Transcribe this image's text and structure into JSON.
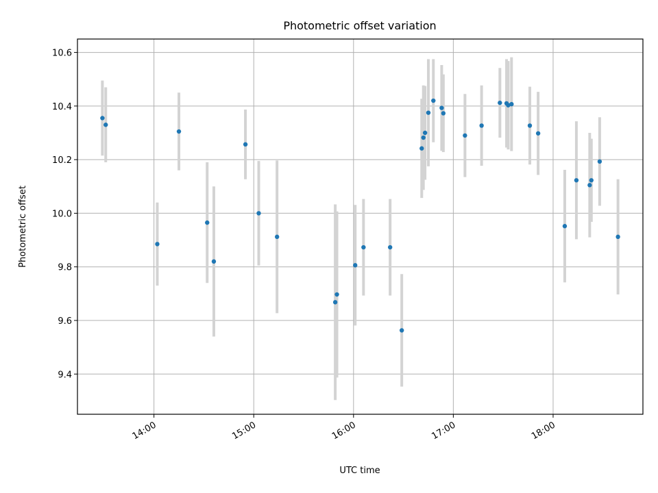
{
  "chart_data": {
    "type": "scatter",
    "title": "Photometric offset variation",
    "xlabel": "UTC time",
    "ylabel": "Photometric offset",
    "x_ticks": [
      "14:00",
      "15:00",
      "16:00",
      "17:00",
      "18:00"
    ],
    "y_ticks": [
      "9.4",
      "9.6",
      "9.8",
      "10.0",
      "10.2",
      "10.4",
      "10.6"
    ],
    "xlim": [
      "13:14",
      "18:54"
    ],
    "ylim": [
      9.25,
      10.65
    ],
    "grid": true,
    "colors": {
      "marker": "#1f77b4",
      "errorbar": "#d3d3d3",
      "grid": "#b0b0b0"
    },
    "points": [
      {
        "t": "13:29",
        "y": 10.355,
        "err": 0.14
      },
      {
        "t": "13:31",
        "y": 10.33,
        "err": 0.14
      },
      {
        "t": "14:02",
        "y": 9.885,
        "err": 0.155
      },
      {
        "t": "14:15",
        "y": 10.305,
        "err": 0.145
      },
      {
        "t": "14:32",
        "y": 9.965,
        "err": 0.225
      },
      {
        "t": "14:36",
        "y": 9.82,
        "err": 0.28
      },
      {
        "t": "14:55",
        "y": 10.257,
        "err": 0.13
      },
      {
        "t": "15:03",
        "y": 10.0,
        "err": 0.195
      },
      {
        "t": "15:14",
        "y": 9.912,
        "err": 0.285
      },
      {
        "t": "15:49",
        "y": 9.668,
        "err": 0.365
      },
      {
        "t": "15:50",
        "y": 9.697,
        "err": 0.31
      },
      {
        "t": "16:01",
        "y": 9.806,
        "err": 0.225
      },
      {
        "t": "16:06",
        "y": 9.873,
        "err": 0.18
      },
      {
        "t": "16:22",
        "y": 9.873,
        "err": 0.18
      },
      {
        "t": "16:29",
        "y": 9.563,
        "err": 0.21
      },
      {
        "t": "16:41",
        "y": 10.242,
        "err": 0.185
      },
      {
        "t": "16:42",
        "y": 10.282,
        "err": 0.195
      },
      {
        "t": "16:43",
        "y": 10.3,
        "err": 0.175
      },
      {
        "t": "16:45",
        "y": 10.375,
        "err": 0.2
      },
      {
        "t": "16:48",
        "y": 10.42,
        "err": 0.155
      },
      {
        "t": "16:53",
        "y": 10.393,
        "err": 0.16
      },
      {
        "t": "16:54",
        "y": 10.373,
        "err": 0.145
      },
      {
        "t": "17:07",
        "y": 10.29,
        "err": 0.155
      },
      {
        "t": "17:17",
        "y": 10.327,
        "err": 0.15
      },
      {
        "t": "17:28",
        "y": 10.412,
        "err": 0.13
      },
      {
        "t": "17:32",
        "y": 10.41,
        "err": 0.165
      },
      {
        "t": "17:33",
        "y": 10.403,
        "err": 0.165
      },
      {
        "t": "17:35",
        "y": 10.407,
        "err": 0.175
      },
      {
        "t": "17:46",
        "y": 10.327,
        "err": 0.145
      },
      {
        "t": "17:51",
        "y": 10.298,
        "err": 0.155
      },
      {
        "t": "18:07",
        "y": 9.952,
        "err": 0.21
      },
      {
        "t": "18:14",
        "y": 10.123,
        "err": 0.22
      },
      {
        "t": "18:22",
        "y": 10.105,
        "err": 0.195
      },
      {
        "t": "18:23",
        "y": 10.123,
        "err": 0.155
      },
      {
        "t": "18:28",
        "y": 10.193,
        "err": 0.165
      },
      {
        "t": "18:39",
        "y": 9.912,
        "err": 0.215
      }
    ]
  }
}
